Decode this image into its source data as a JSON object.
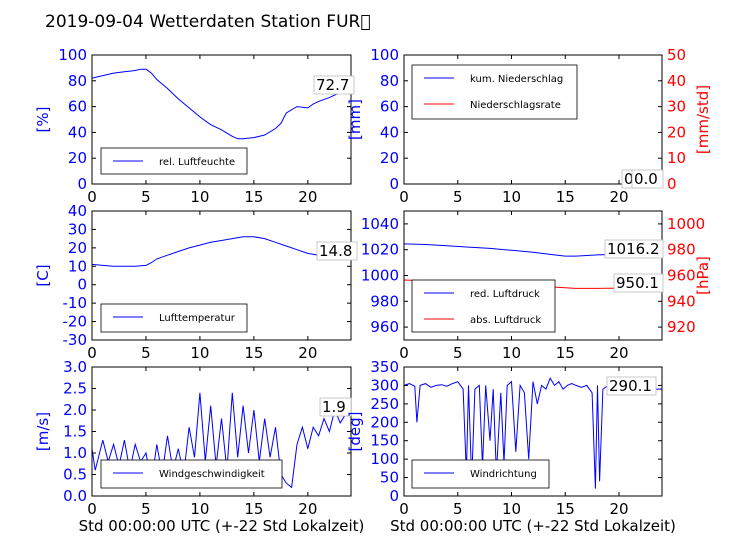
{
  "title": "2019-09-04 Wetterdaten Station FUR\u0000",
  "chart_data": [
    {
      "type": "line",
      "ylabel": "[%]",
      "xlim": [
        0,
        24
      ],
      "ylim": [
        0,
        100
      ],
      "xticks": [
        0,
        5,
        10,
        15,
        20
      ],
      "yticks": [
        0,
        20,
        40,
        60,
        80,
        100
      ],
      "annotation": "72.7",
      "series": [
        {
          "name": "rel. Luftfeuchte",
          "color": "#0000ff",
          "x": [
            0,
            1,
            2,
            3,
            4,
            4.5,
            5,
            5.5,
            6,
            7,
            8,
            9,
            10,
            11,
            12,
            13,
            13.5,
            14,
            15,
            16,
            17,
            17.5,
            18,
            19,
            20,
            20.5,
            21,
            22,
            23,
            24
          ],
          "y": [
            82,
            84,
            86,
            87,
            88,
            89,
            89,
            86,
            81,
            74,
            66,
            59,
            52,
            46,
            42,
            37,
            35,
            35,
            36,
            38,
            43,
            47,
            55,
            60,
            59,
            62,
            64,
            67,
            71,
            73
          ]
        }
      ]
    },
    {
      "type": "line",
      "ylabel": "[mm]",
      "y2label": "[mm/std]",
      "xlim": [
        0,
        24
      ],
      "ylim": [
        0,
        100
      ],
      "y2lim": [
        0,
        50
      ],
      "xticks": [
        0,
        5,
        10,
        15,
        20
      ],
      "yticks": [
        0,
        20,
        40,
        60,
        80,
        100
      ],
      "y2ticks": [
        0,
        10,
        20,
        30,
        40,
        50
      ],
      "annotation": "0.0",
      "annotation2": "0",
      "series": [
        {
          "name": "kum. Niederschlag",
          "color": "#0000ff",
          "axis": "left",
          "x": [
            0,
            24
          ],
          "y": [
            0,
            0
          ]
        },
        {
          "name": "Niederschlagsrate",
          "color": "#ff0000",
          "axis": "right",
          "x": [
            0,
            24
          ],
          "y": [
            0,
            0
          ]
        }
      ]
    },
    {
      "type": "line",
      "ylabel": "[C]",
      "xlim": [
        0,
        24
      ],
      "ylim": [
        -30,
        40
      ],
      "xticks": [
        0,
        5,
        10,
        15,
        20
      ],
      "yticks": [
        -30,
        -20,
        -10,
        0,
        10,
        20,
        30,
        40
      ],
      "annotation": "14.8",
      "series": [
        {
          "name": "Lufttemperatur",
          "color": "#0000ff",
          "x": [
            0,
            1,
            2,
            3,
            4,
            5,
            5.5,
            6,
            7,
            8,
            9,
            10,
            11,
            12,
            13,
            14,
            15,
            16,
            17,
            18,
            19,
            20,
            21,
            22,
            23,
            24
          ],
          "y": [
            11,
            10.5,
            10,
            10,
            10,
            10.5,
            12,
            14,
            16,
            18,
            20,
            21.5,
            23,
            24,
            25,
            26,
            26,
            25,
            23,
            21,
            19,
            17,
            16,
            15.5,
            15,
            14.8
          ]
        }
      ]
    },
    {
      "type": "line",
      "ylabel": "[hPa]",
      "xlim": [
        0,
        24
      ],
      "ylim": [
        950,
        1050
      ],
      "y2lim": [
        910,
        1010
      ],
      "xticks": [
        0,
        5,
        10,
        15,
        20
      ],
      "yticks": [
        960,
        980,
        1000,
        1020,
        1040
      ],
      "y2ticks": [
        920,
        940,
        960,
        980,
        1000
      ],
      "annotation": "1016.2",
      "annotation2": "950.1",
      "series": [
        {
          "name": "red. Luftdruck",
          "color": "#0000ff",
          "axis": "left",
          "x": [
            0,
            2,
            4,
            6,
            8,
            10,
            12,
            14,
            15,
            16,
            18,
            20,
            22,
            24
          ],
          "y": [
            1024.5,
            1024,
            1023,
            1022,
            1021,
            1019.5,
            1018,
            1016,
            1015,
            1015,
            1016,
            1016.5,
            1016.3,
            1016.2
          ]
        },
        {
          "name": "abs. Luftdruck",
          "color": "#ff0000",
          "axis": "right",
          "x": [
            0,
            2,
            4,
            6,
            8,
            10,
            12,
            14,
            15,
            16,
            18,
            20,
            22,
            24
          ],
          "y": [
            956.5,
            956,
            955.5,
            955,
            954.5,
            953.5,
            952,
            951,
            950.5,
            950,
            950,
            950.2,
            950.1,
            950.1
          ]
        }
      ]
    },
    {
      "type": "line",
      "ylabel": "[m/s]",
      "xlabel": "Std 00:00:00 UTC (+-22 Std Lokalzeit)",
      "xlim": [
        0,
        24
      ],
      "ylim": [
        0,
        3.0
      ],
      "xticks": [
        0,
        5,
        10,
        15,
        20
      ],
      "yticks": [
        0,
        0.5,
        1.0,
        1.5,
        2.0,
        2.5,
        3.0
      ],
      "annotation": "1.9",
      "series": [
        {
          "name": "Windgeschwindigkeit",
          "color": "#0000ff",
          "x": [
            0,
            0.3,
            0.6,
            1,
            1.5,
            2,
            2.5,
            3,
            3.5,
            4,
            4.5,
            5,
            5.5,
            6,
            6.5,
            7,
            7.5,
            8,
            8.5,
            9,
            9.5,
            10,
            10.5,
            11,
            11.5,
            12,
            12.5,
            13,
            13.5,
            14,
            14.5,
            15,
            15.5,
            16,
            16.5,
            17,
            17.5,
            18,
            18.5,
            19,
            19.5,
            20,
            20.5,
            21,
            21.5,
            22,
            22.5,
            23,
            23.5,
            24
          ],
          "y": [
            1.1,
            0.6,
            0.9,
            1.3,
            0.8,
            1.2,
            0.7,
            1.3,
            0.6,
            1.2,
            0.8,
            1.0,
            0.3,
            1.2,
            0.5,
            1.4,
            0.6,
            1.1,
            0.5,
            1.6,
            0.9,
            2.4,
            0.8,
            2.1,
            0.7,
            1.8,
            0.6,
            2.4,
            0.9,
            2.1,
            1.0,
            2.0,
            0.8,
            1.8,
            0.9,
            1.6,
            0.5,
            0.3,
            0.2,
            1.2,
            1.6,
            1.1,
            1.6,
            1.4,
            1.8,
            1.5,
            2.0,
            1.7,
            1.9,
            1.9
          ]
        }
      ]
    },
    {
      "type": "line",
      "ylabel": "[deg]",
      "xlabel": "Std 00:00:00 UTC (+-22 Std Lokalzeit)",
      "xlim": [
        0,
        24
      ],
      "ylim": [
        0,
        350
      ],
      "xticks": [
        0,
        5,
        10,
        15,
        20
      ],
      "yticks": [
        0,
        50,
        100,
        150,
        200,
        250,
        300,
        350
      ],
      "annotation": "290.1",
      "series": [
        {
          "name": "Windrichtung",
          "color": "#0000ff",
          "x": [
            0,
            0.5,
            1,
            1.2,
            1.5,
            2,
            2.5,
            3,
            3.5,
            4,
            4.5,
            5,
            5.5,
            5.8,
            6,
            6.3,
            6.6,
            7,
            7.3,
            7.6,
            8,
            8.3,
            8.6,
            9,
            9.3,
            9.6,
            10,
            10.4,
            10.8,
            11.2,
            11.6,
            12,
            12.4,
            12.8,
            13.2,
            13.6,
            14,
            14.4,
            14.8,
            15.2,
            15.6,
            16,
            16.5,
            17,
            17.5,
            17.8,
            18,
            18.2,
            18.5,
            19,
            19.5,
            20,
            21,
            22,
            23,
            24
          ],
          "y": [
            300,
            305,
            298,
            200,
            300,
            305,
            295,
            300,
            302,
            298,
            305,
            310,
            290,
            60,
            300,
            40,
            290,
            300,
            80,
            300,
            150,
            290,
            60,
            280,
            90,
            300,
            310,
            120,
            300,
            280,
            100,
            310,
            250,
            300,
            290,
            320,
            300,
            310,
            290,
            300,
            305,
            300,
            295,
            300,
            280,
            20,
            300,
            40,
            290,
            300,
            295,
            295,
            290,
            295,
            290,
            290
          ]
        }
      ]
    }
  ]
}
